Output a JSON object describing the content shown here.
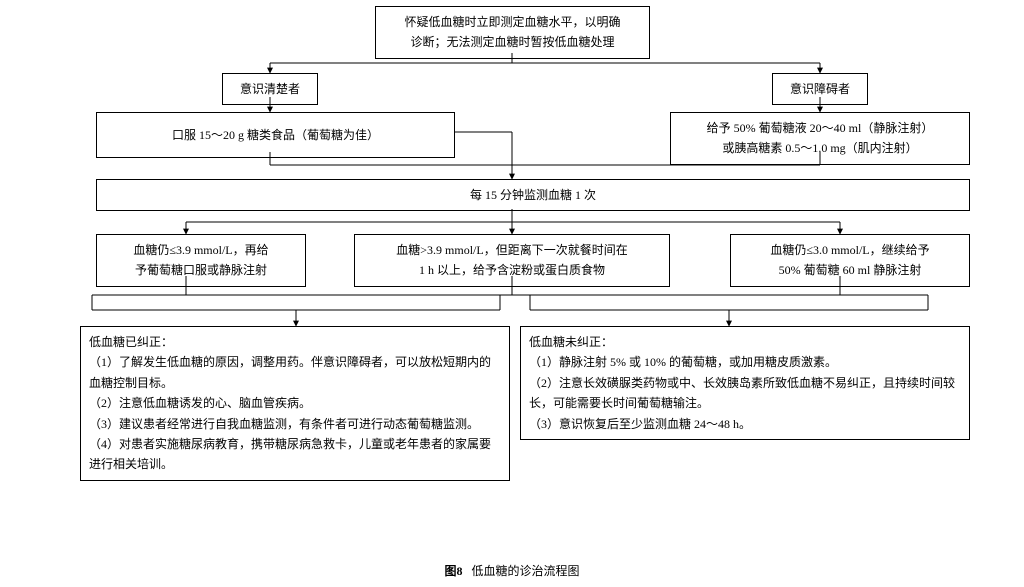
{
  "type": "flowchart",
  "background_color": "#ffffff",
  "line_color": "#000000",
  "text_color": "#000000",
  "font_family": "SimSun",
  "caption": {
    "label": "图8",
    "text": "低血糖的诊治流程图"
  },
  "nodes": {
    "n_top": {
      "text": "怀疑低血糖时立即测定血糖水平，以明确\n诊断；无法测定血糖时暂按低血糖处理"
    },
    "n_conscL": {
      "text": "意识清楚者"
    },
    "n_conscR": {
      "text": "意识障碍者"
    },
    "n_oral": {
      "text": "口服 15～20 g 糖类食品（葡萄糖为佳）"
    },
    "n_iv": {
      "text": "给予 50% 葡萄糖液 20～40 ml（静脉注射）\n或胰高糖素 0.5～1.0 mg（肌内注射）"
    },
    "n_monitor": {
      "text": "每 15 分钟监测血糖 1 次"
    },
    "n_r1": {
      "text": "血糖仍≤3.9 mmol/L，再给\n予葡萄糖口服或静脉注射"
    },
    "n_r2": {
      "text": "血糖>3.9 mmol/L，但距离下一次就餐时间在\n1 h 以上，给予含淀粉或蛋白质食物"
    },
    "n_r3": {
      "text": "血糖仍≤3.0 mmol/L，继续给予\n50% 葡萄糖 60 ml 静脉注射"
    },
    "n_corrected": {
      "title": "低血糖已纠正：",
      "items": [
        "（1）了解发生低血糖的原因，调整用药。伴意识障碍者，可以放松短期内的血糖控制目标。",
        "（2）注意低血糖诱发的心、脑血管疾病。",
        "（3）建议患者经常进行自我血糖监测，有条件者可进行动态葡萄糖监测。",
        "（4）对患者实施糖尿病教育，携带糖尿病急救卡，儿童或老年患者的家属要进行相关培训。"
      ]
    },
    "n_uncorrected": {
      "title": "低血糖未纠正：",
      "items": [
        "（1）静脉注射 5% 或 10% 的葡萄糖，或加用糖皮质激素。",
        "（2）注意长效磺脲类药物或中、长效胰岛素所致低血糖不易纠正，且持续时间较长，可能需要长时间葡萄糖输注。",
        "（3）意识恢复后至少监测血糖 24～48 h。"
      ]
    }
  },
  "edges": [
    {
      "points": [
        [
          512,
          53
        ],
        [
          512,
          63
        ]
      ]
    },
    {
      "points": [
        [
          270,
          63
        ],
        [
          820,
          63
        ]
      ]
    },
    {
      "points": [
        [
          270,
          63
        ],
        [
          270,
          73
        ]
      ],
      "arrow": true
    },
    {
      "points": [
        [
          820,
          63
        ],
        [
          820,
          73
        ]
      ],
      "arrow": true
    },
    {
      "points": [
        [
          270,
          97
        ],
        [
          270,
          112
        ]
      ],
      "arrow": true
    },
    {
      "points": [
        [
          820,
          97
        ],
        [
          820,
          112
        ]
      ],
      "arrow": true
    },
    {
      "points": [
        [
          270,
          152
        ],
        [
          270,
          165
        ]
      ]
    },
    {
      "points": [
        [
          820,
          152
        ],
        [
          820,
          165
        ]
      ]
    },
    {
      "points": [
        [
          270,
          165
        ],
        [
          820,
          165
        ]
      ]
    },
    {
      "points": [
        [
          512,
          165
        ],
        [
          512,
          179
        ]
      ],
      "arrow": true
    },
    {
      "points": [
        [
          455,
          132
        ],
        [
          512,
          132
        ]
      ]
    },
    {
      "points": [
        [
          512,
          132
        ],
        [
          512,
          179
        ]
      ]
    },
    {
      "points": [
        [
          512,
          209
        ],
        [
          512,
          222
        ]
      ]
    },
    {
      "points": [
        [
          186,
          222
        ],
        [
          840,
          222
        ]
      ]
    },
    {
      "points": [
        [
          186,
          222
        ],
        [
          186,
          234
        ]
      ],
      "arrow": true
    },
    {
      "points": [
        [
          512,
          222
        ],
        [
          512,
          234
        ]
      ],
      "arrow": true
    },
    {
      "points": [
        [
          840,
          222
        ],
        [
          840,
          234
        ]
      ],
      "arrow": true
    },
    {
      "points": [
        [
          186,
          276
        ],
        [
          186,
          295
        ]
      ]
    },
    {
      "points": [
        [
          512,
          276
        ],
        [
          512,
          295
        ]
      ]
    },
    {
      "points": [
        [
          840,
          276
        ],
        [
          840,
          295
        ]
      ]
    },
    {
      "points": [
        [
          92,
          295
        ],
        [
          928,
          295
        ]
      ]
    },
    {
      "points": [
        [
          92,
          295
        ],
        [
          92,
          310
        ]
      ]
    },
    {
      "points": [
        [
          500,
          295
        ],
        [
          500,
          310
        ]
      ]
    },
    {
      "points": [
        [
          530,
          295
        ],
        [
          530,
          310
        ]
      ]
    },
    {
      "points": [
        [
          928,
          295
        ],
        [
          928,
          310
        ]
      ]
    },
    {
      "points": [
        [
          92,
          310
        ],
        [
          500,
          310
        ]
      ]
    },
    {
      "points": [
        [
          296,
          310
        ],
        [
          296,
          326
        ]
      ],
      "arrow": true
    },
    {
      "points": [
        [
          530,
          310
        ],
        [
          928,
          310
        ]
      ]
    },
    {
      "points": [
        [
          729,
          310
        ],
        [
          729,
          326
        ]
      ],
      "arrow": true
    }
  ]
}
